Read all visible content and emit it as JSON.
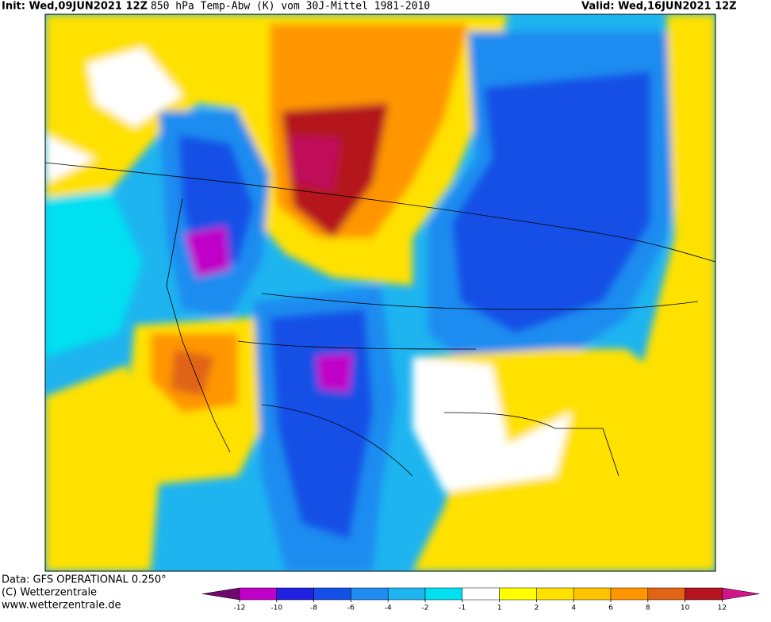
{
  "header": {
    "init": "Init: Wed,09JUN2021 12Z",
    "title": "850 hPa Temp-Abw (K) vom 30J-Mittel 1981-2010",
    "valid": "Valid: Wed,16JUN2021 12Z"
  },
  "footer": {
    "source": "Data: GFS OPERATIONAL 0.250°",
    "copyright": "(C) Wetterzentrale",
    "url": "www.wetterzentrale.de"
  },
  "colorbar": {
    "ticks": [
      -12,
      -10,
      -8,
      -6,
      -4,
      -2,
      -1,
      1,
      2,
      4,
      6,
      8,
      10,
      12
    ],
    "colors": [
      "#6e0a6e",
      "#c000c8",
      "#2020e0",
      "#1450e6",
      "#1e8cf0",
      "#1eb4f0",
      "#00e0f0",
      "#ffffff",
      "#ffff00",
      "#ffe100",
      "#ffc300",
      "#ff9600",
      "#e06414",
      "#b4141e",
      "#d2148c"
    ]
  }
}
